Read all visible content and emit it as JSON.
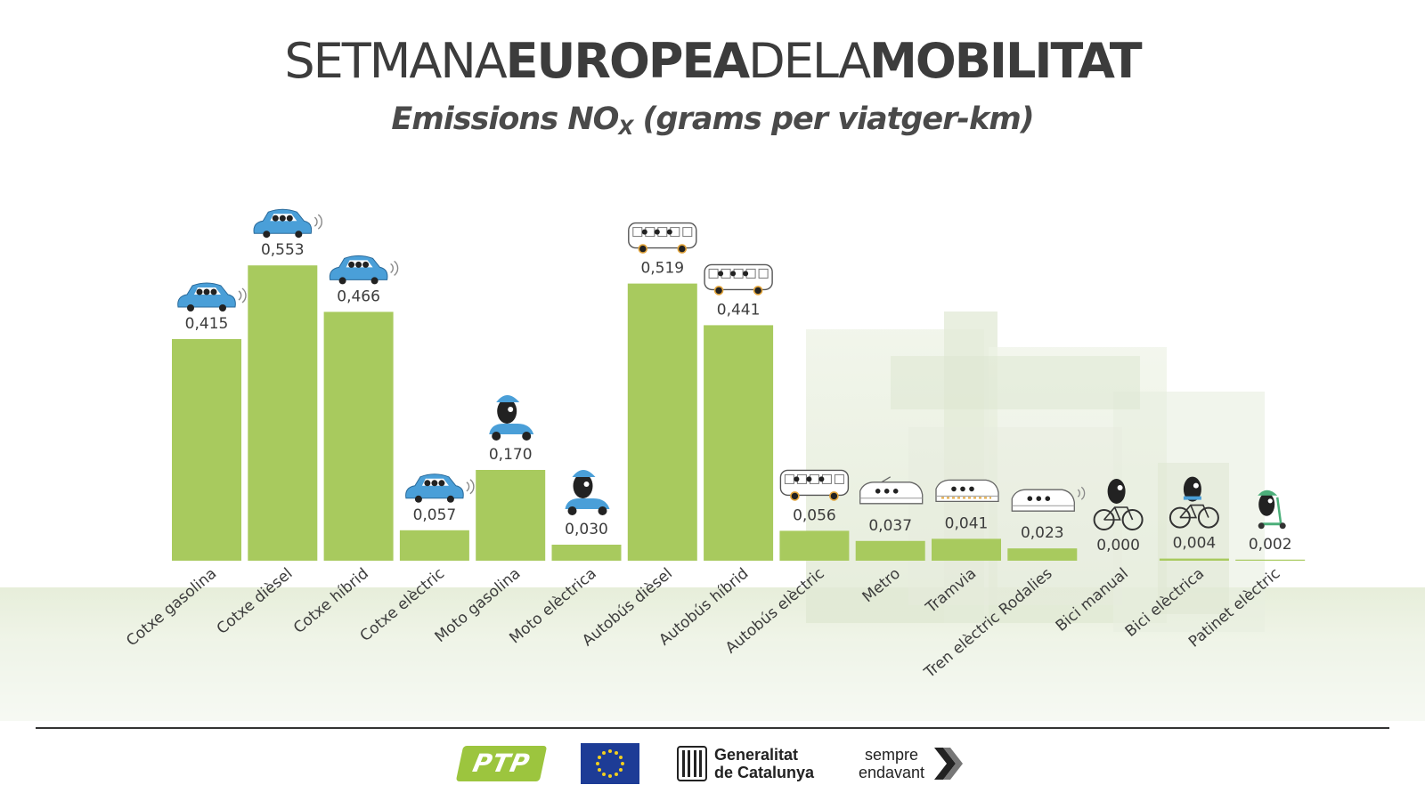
{
  "header": {
    "title_part1": "SETMANA",
    "title_part2": "EUROPEA",
    "title_part3": "DELA",
    "title_part4": "MOBILITAT",
    "subtitle_pre": "Emissions NO",
    "subtitle_sub": "X",
    "subtitle_post": " (grams per viatger-km)"
  },
  "chart_data": {
    "type": "bar",
    "categories": [
      "Cotxe gasolina",
      "Cotxe dièsel",
      "Cotxe híbrid",
      "Cotxe elèctric",
      "Moto gasolina",
      "Moto elèctrica",
      "Autobús dièsel",
      "Autobús híbrid",
      "Autobús elèctric",
      "Metro",
      "Tramvia",
      "Tren elèctric Rodalies",
      "Bici manual",
      "Bici elèctrica",
      "Patinet elèctric"
    ],
    "values": [
      0.415,
      0.553,
      0.466,
      0.057,
      0.17,
      0.03,
      0.519,
      0.441,
      0.056,
      0.037,
      0.041,
      0.023,
      0.0,
      0.004,
      0.002
    ],
    "value_labels": [
      "0,415",
      "0,553",
      "0,466",
      "0,057",
      "0,170",
      "0,030",
      "0,519",
      "0,441",
      "0,056",
      "0,037",
      "0,041",
      "0,023",
      "0,000",
      "0,004",
      "0,002"
    ],
    "icons": [
      "car-icon",
      "car-icon",
      "car-icon",
      "car-icon",
      "scooter-icon",
      "scooter-icon",
      "bus-icon",
      "bus-icon",
      "bus-icon",
      "metro-icon",
      "tram-icon",
      "train-icon",
      "bicycle-icon",
      "bicycle-icon",
      "kick-scooter-icon"
    ],
    "ylim": [
      0,
      0.6
    ],
    "grid": false,
    "legend": "none",
    "bar_color": "#a8ca5e"
  },
  "colors": {
    "bar": "#a8ca5e",
    "car_blue": "#4a9fd8",
    "ptp_green": "#9cc53e",
    "eu_blue": "#1d3c96",
    "eu_star": "#f2cf1f",
    "text_dark": "#3c3c3c"
  },
  "footer": {
    "ptp_label": "PTP",
    "generalitat_line1": "Generalitat",
    "generalitat_line2": "de Catalunya",
    "sempre_line1": "sempre",
    "sempre_line2": "endavant"
  }
}
